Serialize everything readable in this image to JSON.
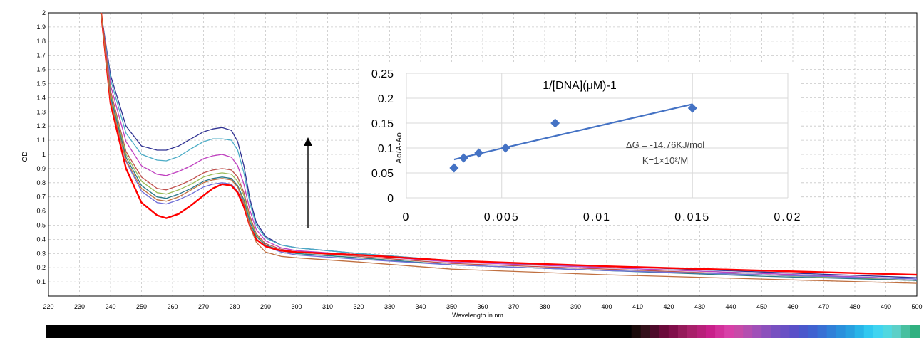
{
  "chart_data": [
    {
      "type": "line",
      "xlabel": "Wavelength in nm",
      "ylabel": "OD",
      "xlim": [
        220,
        500
      ],
      "ylim": [
        0,
        2
      ],
      "xticks": [
        220,
        230,
        240,
        250,
        260,
        270,
        280,
        290,
        300,
        310,
        320,
        330,
        340,
        350,
        360,
        370,
        380,
        390,
        400,
        410,
        420,
        430,
        440,
        450,
        460,
        470,
        480,
        490,
        500
      ],
      "yticks": [
        0.1,
        0.2,
        0.3,
        0.4,
        0.5,
        0.6,
        0.7,
        0.8,
        0.9,
        1,
        1.1,
        1.2,
        1.3,
        1.4,
        1.5,
        1.6,
        1.7,
        1.8,
        1.9,
        2
      ],
      "grid": true,
      "x": [
        237,
        240,
        245,
        250,
        255,
        258,
        262,
        266,
        270,
        273,
        276,
        279,
        281,
        283,
        285,
        287,
        290,
        295,
        300,
        320,
        350,
        400,
        450,
        500
      ],
      "series": [
        {
          "color": "#2e3192",
          "values": [
            2.0,
            1.56,
            1.2,
            1.06,
            1.03,
            1.03,
            1.06,
            1.11,
            1.16,
            1.18,
            1.19,
            1.17,
            1.09,
            0.92,
            0.68,
            0.52,
            0.42,
            0.36,
            0.34,
            0.3,
            0.25,
            0.21,
            0.17,
            0.13
          ]
        },
        {
          "color": "#4bacc6",
          "values": [
            2.0,
            1.53,
            1.15,
            1.0,
            0.96,
            0.955,
            0.985,
            1.04,
            1.09,
            1.11,
            1.11,
            1.1,
            1.03,
            0.87,
            0.65,
            0.5,
            0.41,
            0.36,
            0.34,
            0.3,
            0.25,
            0.2,
            0.16,
            0.12
          ]
        },
        {
          "color": "#c040c0",
          "values": [
            2.0,
            1.49,
            1.09,
            0.92,
            0.86,
            0.85,
            0.88,
            0.92,
            0.97,
            0.99,
            1.0,
            0.98,
            0.92,
            0.79,
            0.6,
            0.47,
            0.39,
            0.34,
            0.32,
            0.29,
            0.24,
            0.2,
            0.16,
            0.12
          ]
        },
        {
          "color": "#c0504d",
          "values": [
            2.0,
            1.45,
            1.02,
            0.84,
            0.76,
            0.75,
            0.78,
            0.82,
            0.87,
            0.89,
            0.9,
            0.89,
            0.84,
            0.73,
            0.56,
            0.44,
            0.37,
            0.33,
            0.31,
            0.28,
            0.23,
            0.19,
            0.15,
            0.11
          ]
        },
        {
          "color": "#9bbb59",
          "values": [
            2.0,
            1.43,
            1.0,
            0.81,
            0.73,
            0.72,
            0.75,
            0.79,
            0.84,
            0.86,
            0.87,
            0.86,
            0.81,
            0.71,
            0.54,
            0.43,
            0.36,
            0.32,
            0.3,
            0.27,
            0.22,
            0.18,
            0.15,
            0.11
          ]
        },
        {
          "color": "#2a7a8a",
          "values": [
            2.0,
            1.41,
            0.98,
            0.78,
            0.7,
            0.69,
            0.72,
            0.76,
            0.81,
            0.83,
            0.84,
            0.83,
            0.78,
            0.68,
            0.52,
            0.42,
            0.36,
            0.32,
            0.3,
            0.27,
            0.22,
            0.18,
            0.14,
            0.11
          ]
        },
        {
          "color": "#7070d8",
          "values": [
            2.0,
            1.39,
            0.95,
            0.74,
            0.66,
            0.65,
            0.68,
            0.72,
            0.77,
            0.79,
            0.8,
            0.79,
            0.74,
            0.65,
            0.5,
            0.4,
            0.35,
            0.31,
            0.29,
            0.26,
            0.22,
            0.18,
            0.15,
            0.12
          ]
        },
        {
          "color": "#ff0000",
          "values": [
            2.0,
            1.36,
            0.9,
            0.66,
            0.57,
            0.55,
            0.58,
            0.64,
            0.71,
            0.76,
            0.79,
            0.78,
            0.73,
            0.63,
            0.49,
            0.4,
            0.35,
            0.32,
            0.31,
            0.29,
            0.25,
            0.21,
            0.18,
            0.15
          ]
        },
        {
          "color": "#c07040",
          "values": [
            2.0,
            1.38,
            0.96,
            0.76,
            0.68,
            0.67,
            0.7,
            0.75,
            0.8,
            0.82,
            0.83,
            0.82,
            0.77,
            0.66,
            0.49,
            0.38,
            0.31,
            0.28,
            0.27,
            0.24,
            0.19,
            0.15,
            0.12,
            0.09
          ]
        }
      ],
      "annotation": "arrow-up"
    },
    {
      "type": "scatter",
      "title": "1/[DNA](μM)-1",
      "ylabel": "Ao/A-Ao",
      "xlim": [
        0,
        0.02
      ],
      "ylim": [
        0,
        0.25
      ],
      "xticks": [
        "0",
        "0.005",
        "0.01",
        "0.015",
        "0.02"
      ],
      "yticks": [
        "0",
        "0.05",
        "0.1",
        "0.15",
        "0.2",
        "0.25"
      ],
      "grid": true,
      "points": [
        [
          0.0025,
          0.06
        ],
        [
          0.003,
          0.08
        ],
        [
          0.0038,
          0.09
        ],
        [
          0.0052,
          0.1
        ],
        [
          0.0078,
          0.15
        ],
        [
          0.015,
          0.18
        ]
      ],
      "trendline": [
        [
          0.0025,
          0.077
        ],
        [
          0.015,
          0.188
        ]
      ],
      "annotations": [
        "ΔG = -14.76KJ/mol",
        "K=1×10²/M"
      ]
    }
  ],
  "colors": {
    "marker": "#4472c4",
    "grid_main": "#c8c8c8",
    "grid_inset": "#d9d9d9",
    "spectrum_bar": [
      "#000000",
      "#000000",
      "#000000",
      "#000000",
      "#000000",
      "#000000",
      "#000000",
      "#000000",
      "#000000",
      "#000000",
      "#000000",
      "#000000",
      "#000000",
      "#000000",
      "#000000",
      "#000000",
      "#000000",
      "#000000",
      "#000000",
      "#000000",
      "#000000",
      "#000000",
      "#000000",
      "#000000",
      "#000000",
      "#000000",
      "#000000",
      "#000000",
      "#000000",
      "#000000",
      "#000000",
      "#000000",
      "#000000",
      "#000000",
      "#000000",
      "#000000",
      "#000000",
      "#000000",
      "#000000",
      "#000000",
      "#000000",
      "#000000",
      "#000000",
      "#000000",
      "#000000",
      "#000000",
      "#000000",
      "#000000",
      "#000000",
      "#000000",
      "#000000",
      "#000000",
      "#000000",
      "#000000",
      "#000000",
      "#000000",
      "#000000",
      "#000000",
      "#000000",
      "#000000",
      "#000000",
      "#000000",
      "#000000",
      "#1a0a0a",
      "#33101a",
      "#4d0a2a",
      "#6a0a3a",
      "#800e4a",
      "#951a5a",
      "#a8206a",
      "#b8207a",
      "#c8208a",
      "#d2309a",
      "#d840a8",
      "#c84aa8",
      "#b44eb0",
      "#a050b8",
      "#8c50bc",
      "#7850c0",
      "#6a50c4",
      "#5a50c8",
      "#4a58cc",
      "#4062d0",
      "#3870d4",
      "#3080d8",
      "#2a90dc",
      "#28a0e0",
      "#28b4e8",
      "#30c8f0",
      "#40d4f0",
      "#50d8e0",
      "#5cd0c8",
      "#48c0a0",
      "#30b080"
    ]
  }
}
